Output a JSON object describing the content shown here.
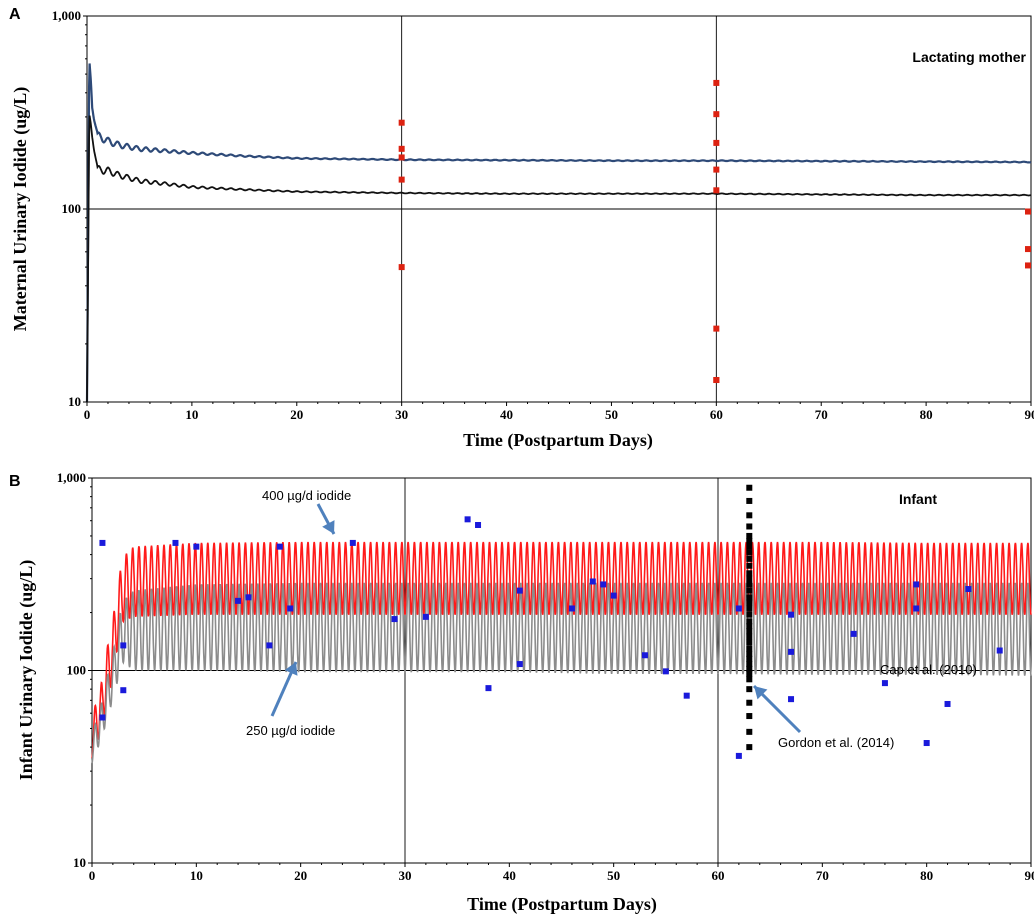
{
  "chart_data": [
    {
      "panel": "A",
      "type": "line",
      "title": "",
      "corner_label": "Lactating mother",
      "xlabel": "Time (Postpartum Days)",
      "ylabel": "Maternal Urinary Iodide (ug/L)",
      "xlim": [
        0,
        90
      ],
      "ylim": [
        10,
        1000
      ],
      "yscale": "log",
      "x_ticks": [
        "0",
        "10",
        "20",
        "30",
        "40",
        "50",
        "60",
        "70",
        "80",
        "90"
      ],
      "y_ticks": [
        "10",
        "100",
        "1,000"
      ],
      "grid": "lines at x=30, x=60 and y=100",
      "colors": {
        "upper_line": "#2e4a78",
        "lower_line": "#111111",
        "observed": "#dd2211"
      },
      "series": [
        {
          "kind": "line",
          "color": "#2e4a78",
          "x": [
            0.25,
            0.5,
            1,
            2,
            3,
            5,
            10,
            15,
            20,
            30,
            40,
            50,
            60,
            70,
            80,
            90
          ],
          "y": [
            540,
            340,
            240,
            225,
            215,
            205,
            195,
            188,
            183,
            180,
            179,
            178,
            178,
            177,
            176,
            175
          ]
        },
        {
          "kind": "line",
          "color": "#111111",
          "x": [
            0.25,
            0.5,
            1,
            2,
            3,
            5,
            10,
            15,
            20,
            30,
            40,
            50,
            60,
            70,
            80,
            90
          ],
          "y": [
            290,
            240,
            160,
            158,
            150,
            140,
            130,
            126,
            123,
            121,
            120,
            120,
            120,
            119,
            118,
            118
          ]
        },
        {
          "kind": "scatter",
          "color": "#dd2211",
          "x": [
            30,
            30,
            30,
            30,
            30,
            60,
            60,
            60,
            60,
            60,
            60,
            60,
            60,
            90,
            90,
            90
          ],
          "y": [
            280,
            205,
            185,
            142,
            50,
            450,
            310,
            220,
            160,
            125,
            24,
            13,
            13,
            97,
            62,
            51
          ]
        }
      ]
    },
    {
      "panel": "B",
      "type": "line",
      "title": "",
      "corner_label": "Infant",
      "xlabel": "Time (Postpartum Days)",
      "ylabel": "Infant Urinary Iodide (ug/L)",
      "xlim": [
        0,
        90
      ],
      "ylim": [
        10,
        1000
      ],
      "yscale": "log",
      "x_ticks": [
        "0",
        "10",
        "20",
        "30",
        "40",
        "50",
        "60",
        "70",
        "80",
        "90"
      ],
      "y_ticks": [
        "10",
        "100",
        "1,000"
      ],
      "grid": "lines at x=30, x=60 and y=100",
      "colors": {
        "high_dose": "#ff1a1a",
        "low_dose": "#8c8c8c",
        "cap": "#1a1adb",
        "gordon": "#000000",
        "arrow": "#4f81bd"
      },
      "annotations": {
        "high_dose": "400 µg/d iodide",
        "low_dose": "250 µg/d iodide",
        "cap": "Cap et al. (2010)",
        "gordon": "Gordon et al. (2014)"
      },
      "series": [
        {
          "name": "400 µg/d iodide",
          "kind": "oscillating-band",
          "color": "#ff1a1a",
          "x": [
            0,
            1,
            2,
            3,
            4,
            10,
            20,
            30,
            40,
            50,
            60,
            70,
            80,
            90
          ],
          "y_low": [
            35,
            50,
            90,
            180,
            190,
            195,
            195,
            195,
            195,
            195,
            195,
            195,
            195,
            195
          ],
          "y_high": [
            55,
            90,
            180,
            390,
            440,
            460,
            465,
            465,
            465,
            465,
            465,
            465,
            460,
            460
          ]
        },
        {
          "name": "250 µg/d iodide",
          "kind": "oscillating-band",
          "color": "#8c8c8c",
          "x": [
            0,
            1,
            2,
            3,
            4,
            10,
            20,
            30,
            40,
            50,
            60,
            70,
            80,
            90
          ],
          "y_low": [
            33,
            45,
            70,
            110,
            100,
            100,
            98,
            98,
            98,
            96,
            96,
            95,
            95,
            94
          ],
          "y_high": [
            45,
            70,
            120,
            230,
            260,
            280,
            285,
            285,
            285,
            285,
            285,
            285,
            285,
            285
          ]
        },
        {
          "name": "Cap et al. (2010)",
          "kind": "scatter",
          "color": "#1a1adb",
          "x": [
            1,
            1,
            3,
            3,
            8,
            10,
            14,
            15,
            17,
            18,
            19,
            25,
            29,
            32,
            36,
            37,
            38,
            41,
            41,
            46,
            48,
            49,
            50,
            53,
            55,
            57,
            62,
            62,
            67,
            67,
            67,
            73,
            76,
            79,
            79,
            80,
            82,
            84,
            87
          ],
          "y": [
            460,
            57,
            135,
            79,
            460,
            440,
            230,
            240,
            135,
            440,
            210,
            460,
            185,
            190,
            610,
            570,
            81,
            260,
            108,
            210,
            290,
            280,
            245,
            120,
            99,
            74,
            36,
            210,
            195,
            125,
            71,
            155,
            86,
            280,
            210,
            42,
            67,
            265,
            127
          ]
        },
        {
          "name": "Gordon et al. (2014)",
          "kind": "scatter",
          "color": "#000000",
          "x": [
            63,
            63,
            63,
            63,
            63,
            63,
            63,
            63,
            63,
            63,
            63,
            63,
            63,
            63,
            63,
            63,
            63,
            63,
            63,
            63,
            63,
            63,
            63,
            63,
            63,
            63,
            63,
            63,
            63,
            63,
            63,
            63,
            63,
            63,
            63
          ],
          "y": [
            890,
            760,
            640,
            560,
            500,
            470,
            440,
            410,
            380,
            350,
            320,
            300,
            280,
            260,
            240,
            225,
            210,
            195,
            180,
            170,
            160,
            150,
            140,
            130,
            122,
            115,
            108,
            102,
            96,
            90,
            80,
            68,
            58,
            48,
            40
          ]
        }
      ]
    }
  ]
}
